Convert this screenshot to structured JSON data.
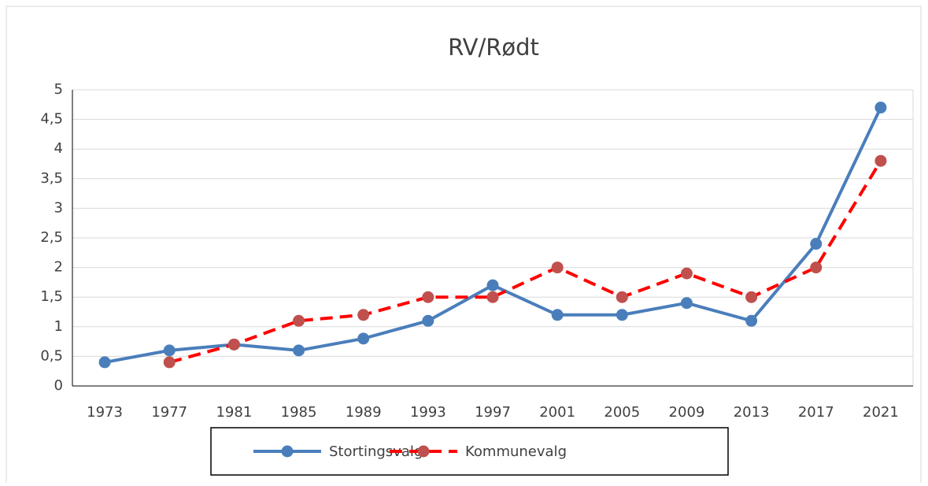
{
  "chart_data": {
    "type": "line",
    "title": "RV/Rødt",
    "categories": [
      "1973",
      "1977",
      "1981",
      "1985",
      "1989",
      "1993",
      "1997",
      "2001",
      "2005",
      "2009",
      "2013",
      "2017",
      "2021"
    ],
    "series": [
      {
        "name": "Stortingsvalg",
        "color": "#4a7ebb",
        "dash": false,
        "values": [
          0.4,
          0.6,
          0.7,
          0.6,
          0.8,
          1.1,
          1.7,
          1.2,
          1.2,
          1.4,
          1.1,
          2.4,
          4.7
        ]
      },
      {
        "name": "Kommunevalg",
        "color": "#ff0000",
        "marker_color": "#c0504d",
        "dash": true,
        "values": [
          null,
          0.4,
          0.7,
          1.1,
          1.2,
          1.5,
          1.5,
          2.0,
          1.5,
          1.9,
          1.5,
          2.0,
          3.8
        ]
      }
    ],
    "ylim": [
      0,
      5
    ],
    "yticks": [
      0,
      {
        "value": 0.5,
        "label": "0,5"
      },
      1,
      {
        "value": 1.5,
        "label": "1,5"
      },
      2,
      {
        "value": 2.5,
        "label": "2,5"
      },
      3,
      {
        "value": 3.5,
        "label": "3,5"
      },
      4,
      {
        "value": 4.5,
        "label": "4,5"
      },
      5
    ],
    "grid": true,
    "legend": "bottom"
  }
}
